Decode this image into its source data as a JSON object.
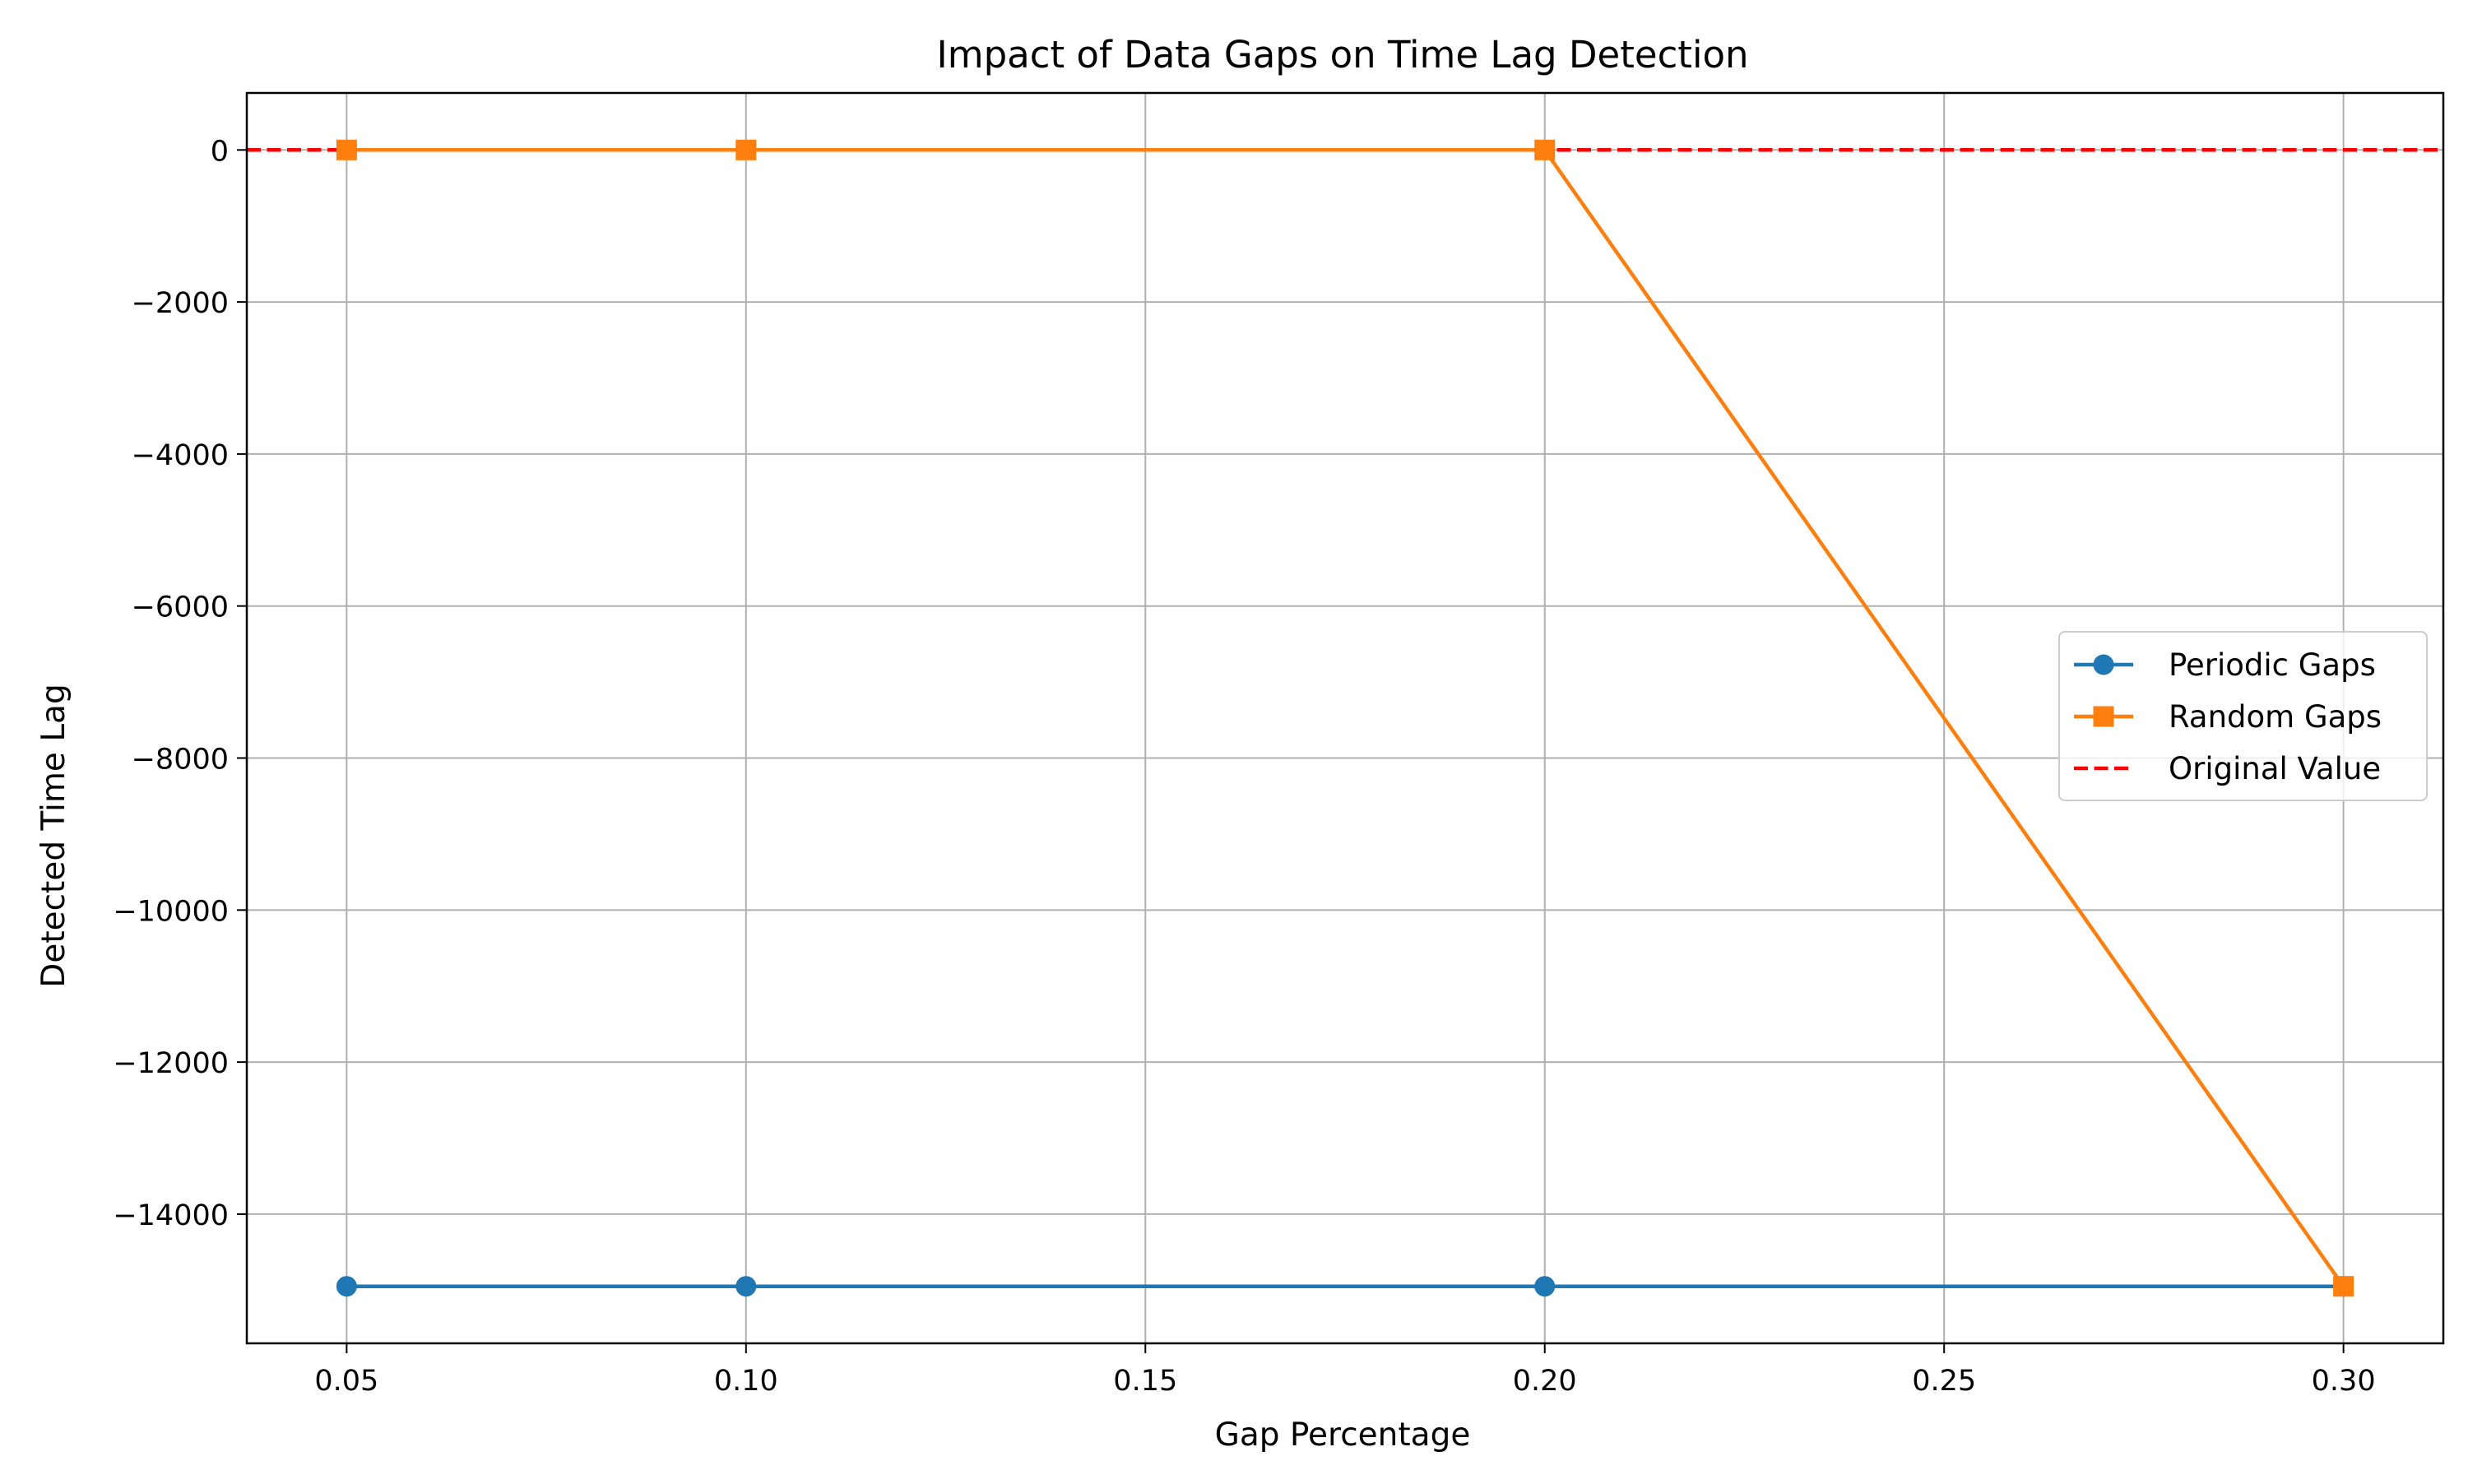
{
  "chart_data": {
    "type": "line",
    "title": "Impact of Data Gaps on Time Lag Detection",
    "xlabel": "Gap Percentage",
    "ylabel": "Detected Time Lag",
    "x": [
      0.05,
      0.1,
      0.2,
      0.3
    ],
    "x_ticks": [
      0.05,
      0.1,
      0.15,
      0.2,
      0.25,
      0.3
    ],
    "x_tick_labels": [
      "0.05",
      "0.10",
      "0.15",
      "0.20",
      "0.25",
      "0.30"
    ],
    "y_ticks": [
      0,
      -2000,
      -4000,
      -6000,
      -8000,
      -10000,
      -12000,
      -14000
    ],
    "y_tick_labels": [
      "0",
      "−2000",
      "−4000",
      "−6000",
      "−8000",
      "−10000",
      "−12000",
      "−14000"
    ],
    "xlim": [
      0.0375,
      0.3125
    ],
    "ylim": [
      -15700,
      750
    ],
    "grid": true,
    "legend_position": "center-right",
    "series": [
      {
        "name": "Periodic Gaps",
        "values": [
          -14950,
          -14950,
          -14950,
          -14950
        ],
        "color": "#1f77b4",
        "marker": "circle",
        "line": "solid"
      },
      {
        "name": "Random Gaps",
        "values": [
          0,
          0,
          0,
          -14950
        ],
        "color": "#ff7f0e",
        "marker": "square",
        "line": "solid"
      }
    ],
    "reference_line": {
      "name": "Original Value",
      "value": 0,
      "color": "#ff0000",
      "line": "dashed"
    }
  }
}
